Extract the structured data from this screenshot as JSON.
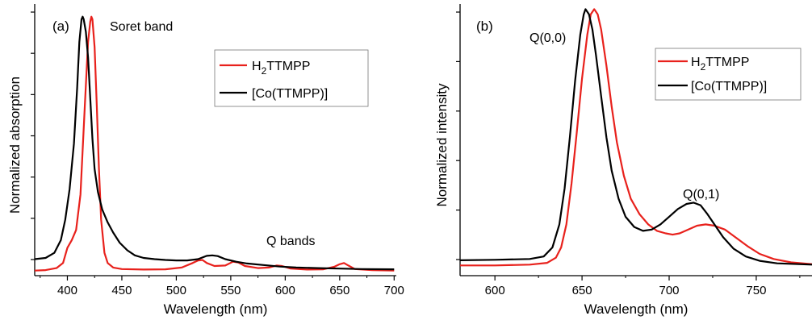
{
  "chart_data": [
    {
      "type": "line",
      "panel_label": "(a)",
      "title": "",
      "xlabel": "Wavelength (nm)",
      "ylabel": "Normalized absorption",
      "xlim": [
        370,
        702
      ],
      "ylim": [
        -0.02,
        1.05
      ],
      "x_ticks": [
        400,
        450,
        500,
        550,
        600,
        650,
        700
      ],
      "y_tick_labels_shown": false,
      "grid": false,
      "legend_position": "top-right",
      "annotations": [
        {
          "text": "Soret band",
          "x": 432,
          "y": 1.0
        },
        {
          "text": "Q bands",
          "x": 560,
          "y": 0.13
        }
      ],
      "series": [
        {
          "name": "H2TTMPP",
          "name_main": "H",
          "name_sub": "2",
          "name_rest": "TTMPP",
          "color": "#e8211c",
          "points": [
            [
              370,
              0.0
            ],
            [
              380,
              0.002
            ],
            [
              390,
              0.01
            ],
            [
              396,
              0.03
            ],
            [
              400,
              0.09
            ],
            [
              404,
              0.12
            ],
            [
              408,
              0.16
            ],
            [
              412,
              0.3
            ],
            [
              416,
              0.65
            ],
            [
              419,
              0.9
            ],
            [
              421,
              0.98
            ],
            [
              422,
              1.0
            ],
            [
              423,
              0.99
            ],
            [
              425,
              0.88
            ],
            [
              427,
              0.65
            ],
            [
              429,
              0.4
            ],
            [
              431,
              0.2
            ],
            [
              434,
              0.07
            ],
            [
              437,
              0.03
            ],
            [
              442,
              0.012
            ],
            [
              450,
              0.006
            ],
            [
              470,
              0.004
            ],
            [
              490,
              0.005
            ],
            [
              505,
              0.012
            ],
            [
              515,
              0.03
            ],
            [
              520,
              0.04
            ],
            [
              524,
              0.042
            ],
            [
              528,
              0.03
            ],
            [
              535,
              0.018
            ],
            [
              545,
              0.02
            ],
            [
              552,
              0.035
            ],
            [
              557,
              0.032
            ],
            [
              563,
              0.018
            ],
            [
              575,
              0.01
            ],
            [
              585,
              0.012
            ],
            [
              592,
              0.02
            ],
            [
              597,
              0.018
            ],
            [
              605,
              0.008
            ],
            [
              620,
              0.004
            ],
            [
              635,
              0.005
            ],
            [
              645,
              0.015
            ],
            [
              650,
              0.025
            ],
            [
              654,
              0.03
            ],
            [
              658,
              0.02
            ],
            [
              664,
              0.006
            ],
            [
              680,
              0.002
            ],
            [
              700,
              0.0
            ]
          ]
        },
        {
          "name": "[Co(TTMPP)]",
          "color": "#000000",
          "points": [
            [
              370,
              0.045
            ],
            [
              380,
              0.05
            ],
            [
              388,
              0.07
            ],
            [
              394,
              0.12
            ],
            [
              398,
              0.2
            ],
            [
              402,
              0.32
            ],
            [
              406,
              0.5
            ],
            [
              409,
              0.72
            ],
            [
              411,
              0.9
            ],
            [
              413,
              0.99
            ],
            [
              414,
              1.0
            ],
            [
              415,
              0.99
            ],
            [
              417,
              0.94
            ],
            [
              419,
              0.84
            ],
            [
              421,
              0.68
            ],
            [
              423,
              0.52
            ],
            [
              425,
              0.4
            ],
            [
              428,
              0.31
            ],
            [
              432,
              0.24
            ],
            [
              437,
              0.19
            ],
            [
              442,
              0.15
            ],
            [
              448,
              0.11
            ],
            [
              455,
              0.08
            ],
            [
              462,
              0.06
            ],
            [
              470,
              0.05
            ],
            [
              480,
              0.045
            ],
            [
              490,
              0.042
            ],
            [
              500,
              0.04
            ],
            [
              510,
              0.04
            ],
            [
              520,
              0.045
            ],
            [
              528,
              0.058
            ],
            [
              533,
              0.06
            ],
            [
              538,
              0.057
            ],
            [
              545,
              0.045
            ],
            [
              555,
              0.035
            ],
            [
              565,
              0.028
            ],
            [
              580,
              0.022
            ],
            [
              595,
              0.016
            ],
            [
              610,
              0.012
            ],
            [
              630,
              0.01
            ],
            [
              650,
              0.008
            ],
            [
              670,
              0.006
            ],
            [
              700,
              0.005
            ]
          ]
        }
      ]
    },
    {
      "type": "line",
      "panel_label": "(b)",
      "title": "",
      "xlabel": "Wavelength (nm)",
      "ylabel": "Normalized intensity",
      "xlim": [
        580,
        782
      ],
      "ylim": [
        -0.04,
        1.02
      ],
      "x_ticks": [
        600,
        650,
        700,
        750
      ],
      "y_tick_labels_shown": false,
      "grid": false,
      "legend_position": "top-right",
      "annotations": [
        {
          "text": "Q(0,0)",
          "x": 630,
          "y": 0.95
        },
        {
          "text": "Q(0,1)",
          "x": 709,
          "y": 0.3
        }
      ],
      "series": [
        {
          "name": "H2TTMPP",
          "name_main": "H",
          "name_sub": "2",
          "name_rest": "TTMPP",
          "color": "#e8211c",
          "points": [
            [
              580,
              0.0
            ],
            [
              600,
              0.0
            ],
            [
              620,
              0.003
            ],
            [
              630,
              0.01
            ],
            [
              635,
              0.03
            ],
            [
              638,
              0.07
            ],
            [
              641,
              0.16
            ],
            [
              644,
              0.32
            ],
            [
              647,
              0.52
            ],
            [
              650,
              0.73
            ],
            [
              653,
              0.9
            ],
            [
              655,
              0.98
            ],
            [
              657,
              1.0
            ],
            [
              659,
              0.98
            ],
            [
              661,
              0.92
            ],
            [
              664,
              0.78
            ],
            [
              667,
              0.62
            ],
            [
              670,
              0.48
            ],
            [
              674,
              0.35
            ],
            [
              678,
              0.26
            ],
            [
              683,
              0.2
            ],
            [
              688,
              0.16
            ],
            [
              693,
              0.135
            ],
            [
              698,
              0.125
            ],
            [
              702,
              0.12
            ],
            [
              706,
              0.125
            ],
            [
              711,
              0.14
            ],
            [
              716,
              0.155
            ],
            [
              721,
              0.16
            ],
            [
              726,
              0.155
            ],
            [
              732,
              0.14
            ],
            [
              738,
              0.11
            ],
            [
              745,
              0.075
            ],
            [
              752,
              0.045
            ],
            [
              760,
              0.025
            ],
            [
              770,
              0.012
            ],
            [
              782,
              0.005
            ]
          ]
        },
        {
          "name": "[Co(TTMPP)]",
          "color": "#000000",
          "points": [
            [
              580,
              0.02
            ],
            [
              600,
              0.022
            ],
            [
              620,
              0.025
            ],
            [
              628,
              0.035
            ],
            [
              633,
              0.07
            ],
            [
              637,
              0.16
            ],
            [
              640,
              0.3
            ],
            [
              643,
              0.5
            ],
            [
              646,
              0.72
            ],
            [
              649,
              0.9
            ],
            [
              651,
              0.98
            ],
            [
              652,
              1.0
            ],
            [
              654,
              0.98
            ],
            [
              656,
              0.92
            ],
            [
              658,
              0.82
            ],
            [
              661,
              0.66
            ],
            [
              664,
              0.5
            ],
            [
              667,
              0.37
            ],
            [
              671,
              0.26
            ],
            [
              675,
              0.19
            ],
            [
              680,
              0.15
            ],
            [
              685,
              0.135
            ],
            [
              690,
              0.14
            ],
            [
              695,
              0.16
            ],
            [
              700,
              0.19
            ],
            [
              705,
              0.22
            ],
            [
              710,
              0.24
            ],
            [
              714,
              0.245
            ],
            [
              718,
              0.235
            ],
            [
              722,
              0.2
            ],
            [
              726,
              0.16
            ],
            [
              731,
              0.11
            ],
            [
              737,
              0.065
            ],
            [
              744,
              0.035
            ],
            [
              752,
              0.018
            ],
            [
              762,
              0.008
            ],
            [
              782,
              0.003
            ]
          ]
        }
      ]
    }
  ]
}
